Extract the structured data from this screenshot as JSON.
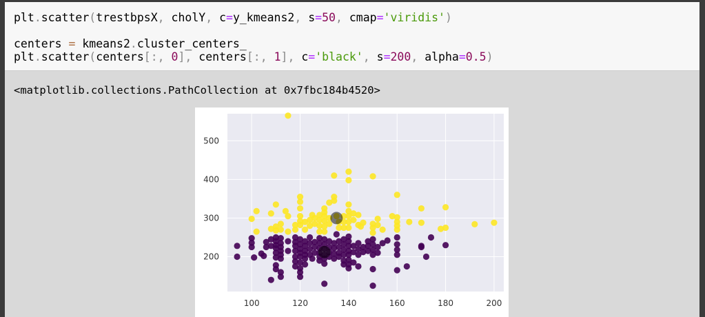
{
  "code": {
    "line1": {
      "t1": "plt",
      "t2": ".",
      "t3": "scatter",
      "t4": "(",
      "t5": "trestbpsX",
      "t6": ", ",
      "t7": "cholY",
      "t8": ", ",
      "t9": "c",
      "t10": "=",
      "t11": "y_kmeans2",
      "t12": ", ",
      "t13": "s",
      "t14": "=",
      "t15": "50",
      "t16": ", ",
      "t17": "cmap",
      "t18": "=",
      "t19": "'viridis'",
      "t20": ")"
    },
    "line2": {
      "t1": "centers ",
      "t2": "=",
      "t3": " kmeans2",
      "t4": ".",
      "t5": "cluster_centers_"
    },
    "line3": {
      "t1": "plt",
      "t2": ".",
      "t3": "scatter",
      "t4": "(",
      "t5": "centers",
      "t6": "[:, ",
      "t7": "0",
      "t8": "], ",
      "t9": "centers",
      "t10": "[:, ",
      "t11": "1",
      "t12": "], ",
      "t13": "c",
      "t14": "=",
      "t15": "'black'",
      "t16": ", ",
      "t17": "s",
      "t18": "=",
      "t19": "200",
      "t20": ", ",
      "t21": "alpha",
      "t22": "=",
      "t23": "0.5",
      "t24": ")"
    }
  },
  "output_text": "<matplotlib.collections.PathCollection at 0x7fbc184b4520>",
  "colors": {
    "cluster_0": "#440154",
    "cluster_1": "#fde725",
    "center": "#000000",
    "plot_bg": "#eaeaf2",
    "grid": "#ffffff"
  },
  "chart_data": {
    "type": "scatter",
    "xlim": [
      90,
      204
    ],
    "ylim": [
      110,
      570
    ],
    "xticks": [
      100,
      120,
      140,
      160,
      180,
      200
    ],
    "yticks": [
      200,
      300,
      400,
      500
    ],
    "grid": true,
    "series": [
      {
        "points": [
          [
            94,
            228
          ],
          [
            94,
            200
          ],
          [
            100,
            248
          ],
          [
            100,
            236
          ],
          [
            100,
            225
          ],
          [
            101,
            198
          ],
          [
            104,
            208
          ],
          [
            105,
            202
          ],
          [
            106,
            238
          ],
          [
            106,
            225
          ],
          [
            108,
            245
          ],
          [
            108,
            228
          ],
          [
            108,
            140
          ],
          [
            110,
            250
          ],
          [
            110,
            240
          ],
          [
            110,
            230
          ],
          [
            110,
            222
          ],
          [
            110,
            210
          ],
          [
            110,
            198
          ],
          [
            110,
            178
          ],
          [
            110,
            168
          ],
          [
            112,
            248
          ],
          [
            112,
            235
          ],
          [
            112,
            225
          ],
          [
            112,
            215
          ],
          [
            112,
            205
          ],
          [
            112,
            195
          ],
          [
            112,
            160
          ],
          [
            112,
            148
          ],
          [
            115,
            240
          ],
          [
            115,
            215
          ],
          [
            118,
            250
          ],
          [
            118,
            238
          ],
          [
            118,
            228
          ],
          [
            118,
            215
          ],
          [
            118,
            200
          ],
          [
            118,
            188
          ],
          [
            118,
            175
          ],
          [
            120,
            245
          ],
          [
            120,
            232
          ],
          [
            120,
            220
          ],
          [
            120,
            210
          ],
          [
            120,
            200
          ],
          [
            120,
            185
          ],
          [
            120,
            170
          ],
          [
            120,
            160
          ],
          [
            120,
            148
          ],
          [
            122,
            240
          ],
          [
            122,
            228
          ],
          [
            122,
            215
          ],
          [
            122,
            205
          ],
          [
            122,
            195
          ],
          [
            122,
            180
          ],
          [
            124,
            250
          ],
          [
            124,
            235
          ],
          [
            124,
            220
          ],
          [
            124,
            205
          ],
          [
            125,
            195
          ],
          [
            126,
            238
          ],
          [
            126,
            225
          ],
          [
            126,
            210
          ],
          [
            128,
            248
          ],
          [
            128,
            235
          ],
          [
            128,
            222
          ],
          [
            128,
            210
          ],
          [
            128,
            200
          ],
          [
            128,
            190
          ],
          [
            130,
            245
          ],
          [
            130,
            232
          ],
          [
            130,
            220
          ],
          [
            130,
            205
          ],
          [
            130,
            195
          ],
          [
            130,
            182
          ],
          [
            130,
            130
          ],
          [
            132,
            240
          ],
          [
            132,
            225
          ],
          [
            132,
            212
          ],
          [
            132,
            200
          ],
          [
            134,
            235
          ],
          [
            134,
            222
          ],
          [
            134,
            208
          ],
          [
            134,
            195
          ],
          [
            135,
            258
          ],
          [
            136,
            240
          ],
          [
            136,
            225
          ],
          [
            136,
            210
          ],
          [
            136,
            200
          ],
          [
            138,
            245
          ],
          [
            138,
            232
          ],
          [
            138,
            218
          ],
          [
            138,
            205
          ],
          [
            138,
            190
          ],
          [
            138,
            180
          ],
          [
            140,
            252
          ],
          [
            140,
            240
          ],
          [
            140,
            228
          ],
          [
            140,
            215
          ],
          [
            140,
            205
          ],
          [
            140,
            192
          ],
          [
            140,
            180
          ],
          [
            140,
            170
          ],
          [
            142,
            228
          ],
          [
            142,
            212
          ],
          [
            142,
            185
          ],
          [
            144,
            235
          ],
          [
            144,
            220
          ],
          [
            144,
            205
          ],
          [
            144,
            175
          ],
          [
            146,
            225
          ],
          [
            146,
            212
          ],
          [
            148,
            240
          ],
          [
            148,
            228
          ],
          [
            148,
            215
          ],
          [
            150,
            245
          ],
          [
            150,
            232
          ],
          [
            150,
            218
          ],
          [
            150,
            205
          ],
          [
            150,
            168
          ],
          [
            150,
            125
          ],
          [
            152,
            225
          ],
          [
            152,
            210
          ],
          [
            154,
            235
          ],
          [
            156,
            242
          ],
          [
            160,
            250
          ],
          [
            160,
            232
          ],
          [
            160,
            218
          ],
          [
            160,
            205
          ],
          [
            160,
            165
          ],
          [
            164,
            175
          ],
          [
            170,
            228
          ],
          [
            170,
            225
          ],
          [
            172,
            200
          ],
          [
            174,
            250
          ],
          [
            180,
            230
          ]
        ],
        "color_key": "cluster_0"
      },
      {
        "points": [
          [
            100,
            298
          ],
          [
            102,
            318
          ],
          [
            102,
            265
          ],
          [
            108,
            272
          ],
          [
            108,
            312
          ],
          [
            110,
            335
          ],
          [
            110,
            278
          ],
          [
            110,
            268
          ],
          [
            112,
            285
          ],
          [
            112,
            270
          ],
          [
            114,
            318
          ],
          [
            115,
            305
          ],
          [
            115,
            265
          ],
          [
            115,
            565
          ],
          [
            118,
            282
          ],
          [
            118,
            270
          ],
          [
            120,
            355
          ],
          [
            120,
            342
          ],
          [
            120,
            325
          ],
          [
            120,
            305
          ],
          [
            120,
            292
          ],
          [
            120,
            282
          ],
          [
            122,
            290
          ],
          [
            122,
            270
          ],
          [
            124,
            295
          ],
          [
            124,
            280
          ],
          [
            125,
            308
          ],
          [
            126,
            300
          ],
          [
            126,
            285
          ],
          [
            128,
            308
          ],
          [
            128,
            295
          ],
          [
            128,
            280
          ],
          [
            128,
            265
          ],
          [
            130,
            325
          ],
          [
            130,
            315
          ],
          [
            130,
            305
          ],
          [
            130,
            292
          ],
          [
            130,
            278
          ],
          [
            130,
            265
          ],
          [
            132,
            340
          ],
          [
            132,
            300
          ],
          [
            132,
            285
          ],
          [
            134,
            355
          ],
          [
            134,
            345
          ],
          [
            134,
            410
          ],
          [
            135,
            305
          ],
          [
            136,
            290
          ],
          [
            136,
            275
          ],
          [
            138,
            305
          ],
          [
            138,
            290
          ],
          [
            138,
            275
          ],
          [
            140,
            420
          ],
          [
            140,
            398
          ],
          [
            140,
            335
          ],
          [
            140,
            318
          ],
          [
            140,
            305
          ],
          [
            140,
            290
          ],
          [
            140,
            275
          ],
          [
            142,
            312
          ],
          [
            142,
            295
          ],
          [
            144,
            308
          ],
          [
            144,
            282
          ],
          [
            145,
            278
          ],
          [
            146,
            288
          ],
          [
            150,
            408
          ],
          [
            150,
            285
          ],
          [
            150,
            275
          ],
          [
            150,
            262
          ],
          [
            152,
            298
          ],
          [
            152,
            282
          ],
          [
            154,
            270
          ],
          [
            158,
            305
          ],
          [
            160,
            360
          ],
          [
            160,
            302
          ],
          [
            160,
            290
          ],
          [
            160,
            280
          ],
          [
            160,
            270
          ],
          [
            165,
            290
          ],
          [
            170,
            325
          ],
          [
            170,
            288
          ],
          [
            178,
            272
          ],
          [
            180,
            328
          ],
          [
            180,
            275
          ],
          [
            192,
            284
          ],
          [
            200,
            288
          ]
        ],
        "color_key": "cluster_1"
      },
      {
        "points": [
          [
            130,
            212
          ],
          [
            135,
            300
          ]
        ],
        "color_key": "center",
        "alpha": 0.5
      }
    ]
  }
}
